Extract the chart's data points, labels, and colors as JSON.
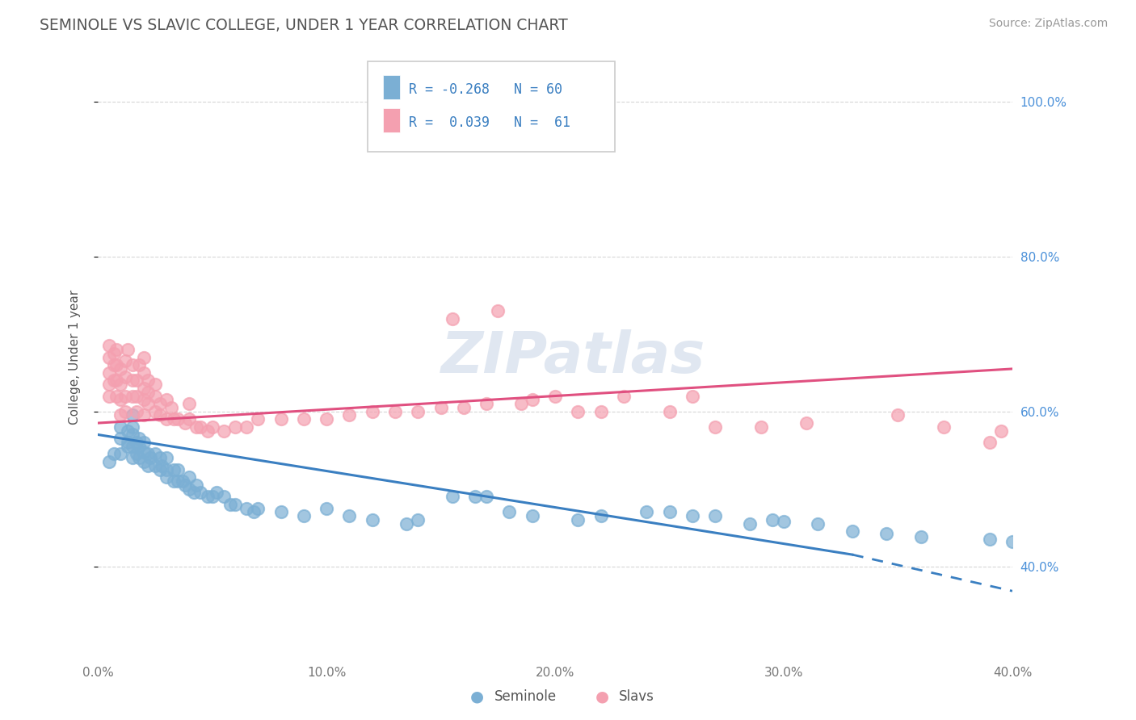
{
  "title": "SEMINOLE VS SLAVIC COLLEGE, UNDER 1 YEAR CORRELATION CHART",
  "source_text": "Source: ZipAtlas.com",
  "xlabel_seminole": "Seminole",
  "xlabel_slavs": "Slavs",
  "ylabel": "College, Under 1 year",
  "xmin": 0.0,
  "xmax": 0.4,
  "ymin": 0.28,
  "ymax": 1.06,
  "xtick_labels": [
    "0.0%",
    "10.0%",
    "20.0%",
    "30.0%",
    "40.0%"
  ],
  "xtick_vals": [
    0.0,
    0.1,
    0.2,
    0.3,
    0.4
  ],
  "ytick_labels": [
    "40.0%",
    "60.0%",
    "80.0%",
    "100.0%"
  ],
  "ytick_vals": [
    0.4,
    0.6,
    0.8,
    1.0
  ],
  "seminole_color": "#7bafd4",
  "slavs_color": "#f4a0b0",
  "trend_seminole_color": "#3a7fc1",
  "trend_slavs_color": "#e05080",
  "trend_sem_x0": 0.0,
  "trend_sem_y0": 0.57,
  "trend_sem_x1": 0.33,
  "trend_sem_y1": 0.415,
  "trend_sem_dash_x1": 0.4,
  "trend_sem_dash_y1": 0.368,
  "trend_slav_x0": 0.0,
  "trend_slav_y0": 0.585,
  "trend_slav_x1": 0.4,
  "trend_slav_y1": 0.655,
  "watermark": "ZIPatlas",
  "seminole_points": [
    [
      0.005,
      0.535
    ],
    [
      0.007,
      0.545
    ],
    [
      0.01,
      0.545
    ],
    [
      0.01,
      0.565
    ],
    [
      0.01,
      0.58
    ],
    [
      0.013,
      0.555
    ],
    [
      0.013,
      0.56
    ],
    [
      0.013,
      0.575
    ],
    [
      0.015,
      0.54
    ],
    [
      0.015,
      0.555
    ],
    [
      0.015,
      0.57
    ],
    [
      0.015,
      0.58
    ],
    [
      0.015,
      0.595
    ],
    [
      0.017,
      0.545
    ],
    [
      0.017,
      0.56
    ],
    [
      0.018,
      0.54
    ],
    [
      0.018,
      0.555
    ],
    [
      0.018,
      0.565
    ],
    [
      0.02,
      0.535
    ],
    [
      0.02,
      0.548
    ],
    [
      0.02,
      0.56
    ],
    [
      0.022,
      0.53
    ],
    [
      0.022,
      0.545
    ],
    [
      0.023,
      0.54
    ],
    [
      0.025,
      0.53
    ],
    [
      0.025,
      0.545
    ],
    [
      0.027,
      0.525
    ],
    [
      0.027,
      0.54
    ],
    [
      0.028,
      0.53
    ],
    [
      0.03,
      0.515
    ],
    [
      0.03,
      0.525
    ],
    [
      0.03,
      0.54
    ],
    [
      0.033,
      0.51
    ],
    [
      0.033,
      0.525
    ],
    [
      0.035,
      0.51
    ],
    [
      0.035,
      0.525
    ],
    [
      0.037,
      0.51
    ],
    [
      0.038,
      0.505
    ],
    [
      0.04,
      0.5
    ],
    [
      0.04,
      0.515
    ],
    [
      0.042,
      0.495
    ],
    [
      0.043,
      0.505
    ],
    [
      0.045,
      0.495
    ],
    [
      0.048,
      0.49
    ],
    [
      0.05,
      0.49
    ],
    [
      0.052,
      0.495
    ],
    [
      0.055,
      0.49
    ],
    [
      0.058,
      0.48
    ],
    [
      0.06,
      0.48
    ],
    [
      0.065,
      0.475
    ],
    [
      0.068,
      0.47
    ],
    [
      0.07,
      0.475
    ],
    [
      0.08,
      0.47
    ],
    [
      0.09,
      0.465
    ],
    [
      0.1,
      0.475
    ],
    [
      0.11,
      0.465
    ],
    [
      0.12,
      0.46
    ],
    [
      0.135,
      0.455
    ],
    [
      0.14,
      0.46
    ],
    [
      0.155,
      0.49
    ],
    [
      0.165,
      0.49
    ],
    [
      0.17,
      0.49
    ],
    [
      0.18,
      0.47
    ],
    [
      0.19,
      0.465
    ],
    [
      0.21,
      0.46
    ],
    [
      0.22,
      0.465
    ],
    [
      0.24,
      0.47
    ],
    [
      0.25,
      0.47
    ],
    [
      0.26,
      0.465
    ],
    [
      0.27,
      0.465
    ],
    [
      0.285,
      0.455
    ],
    [
      0.295,
      0.46
    ],
    [
      0.3,
      0.458
    ],
    [
      0.315,
      0.455
    ],
    [
      0.33,
      0.445
    ],
    [
      0.345,
      0.442
    ],
    [
      0.36,
      0.438
    ],
    [
      0.39,
      0.435
    ],
    [
      0.4,
      0.432
    ]
  ],
  "slavs_points": [
    [
      0.005,
      0.62
    ],
    [
      0.005,
      0.635
    ],
    [
      0.005,
      0.65
    ],
    [
      0.005,
      0.67
    ],
    [
      0.005,
      0.685
    ],
    [
      0.007,
      0.64
    ],
    [
      0.007,
      0.66
    ],
    [
      0.007,
      0.675
    ],
    [
      0.008,
      0.62
    ],
    [
      0.008,
      0.64
    ],
    [
      0.008,
      0.66
    ],
    [
      0.008,
      0.68
    ],
    [
      0.01,
      0.595
    ],
    [
      0.01,
      0.615
    ],
    [
      0.01,
      0.635
    ],
    [
      0.01,
      0.655
    ],
    [
      0.012,
      0.6
    ],
    [
      0.012,
      0.62
    ],
    [
      0.012,
      0.645
    ],
    [
      0.012,
      0.665
    ],
    [
      0.013,
      0.68
    ],
    [
      0.015,
      0.62
    ],
    [
      0.015,
      0.64
    ],
    [
      0.015,
      0.66
    ],
    [
      0.017,
      0.6
    ],
    [
      0.017,
      0.62
    ],
    [
      0.017,
      0.64
    ],
    [
      0.018,
      0.66
    ],
    [
      0.02,
      0.595
    ],
    [
      0.02,
      0.615
    ],
    [
      0.02,
      0.63
    ],
    [
      0.02,
      0.65
    ],
    [
      0.02,
      0.67
    ],
    [
      0.022,
      0.61
    ],
    [
      0.022,
      0.625
    ],
    [
      0.022,
      0.64
    ],
    [
      0.025,
      0.6
    ],
    [
      0.025,
      0.62
    ],
    [
      0.025,
      0.635
    ],
    [
      0.027,
      0.595
    ],
    [
      0.027,
      0.61
    ],
    [
      0.03,
      0.59
    ],
    [
      0.03,
      0.615
    ],
    [
      0.032,
      0.605
    ],
    [
      0.033,
      0.59
    ],
    [
      0.035,
      0.59
    ],
    [
      0.038,
      0.585
    ],
    [
      0.04,
      0.59
    ],
    [
      0.04,
      0.61
    ],
    [
      0.043,
      0.58
    ],
    [
      0.045,
      0.58
    ],
    [
      0.048,
      0.575
    ],
    [
      0.05,
      0.58
    ],
    [
      0.055,
      0.575
    ],
    [
      0.06,
      0.58
    ],
    [
      0.065,
      0.58
    ],
    [
      0.07,
      0.59
    ],
    [
      0.08,
      0.59
    ],
    [
      0.09,
      0.59
    ],
    [
      0.1,
      0.59
    ],
    [
      0.11,
      0.595
    ],
    [
      0.12,
      0.6
    ],
    [
      0.13,
      0.6
    ],
    [
      0.14,
      0.6
    ],
    [
      0.15,
      0.605
    ],
    [
      0.155,
      0.72
    ],
    [
      0.16,
      0.605
    ],
    [
      0.17,
      0.61
    ],
    [
      0.175,
      0.73
    ],
    [
      0.185,
      0.61
    ],
    [
      0.19,
      0.615
    ],
    [
      0.2,
      0.62
    ],
    [
      0.21,
      0.6
    ],
    [
      0.22,
      0.6
    ],
    [
      0.23,
      0.62
    ],
    [
      0.25,
      0.6
    ],
    [
      0.26,
      0.62
    ],
    [
      0.27,
      0.58
    ],
    [
      0.29,
      0.58
    ],
    [
      0.31,
      0.585
    ],
    [
      0.35,
      0.595
    ],
    [
      0.37,
      0.58
    ],
    [
      0.39,
      0.56
    ],
    [
      0.395,
      0.575
    ]
  ]
}
